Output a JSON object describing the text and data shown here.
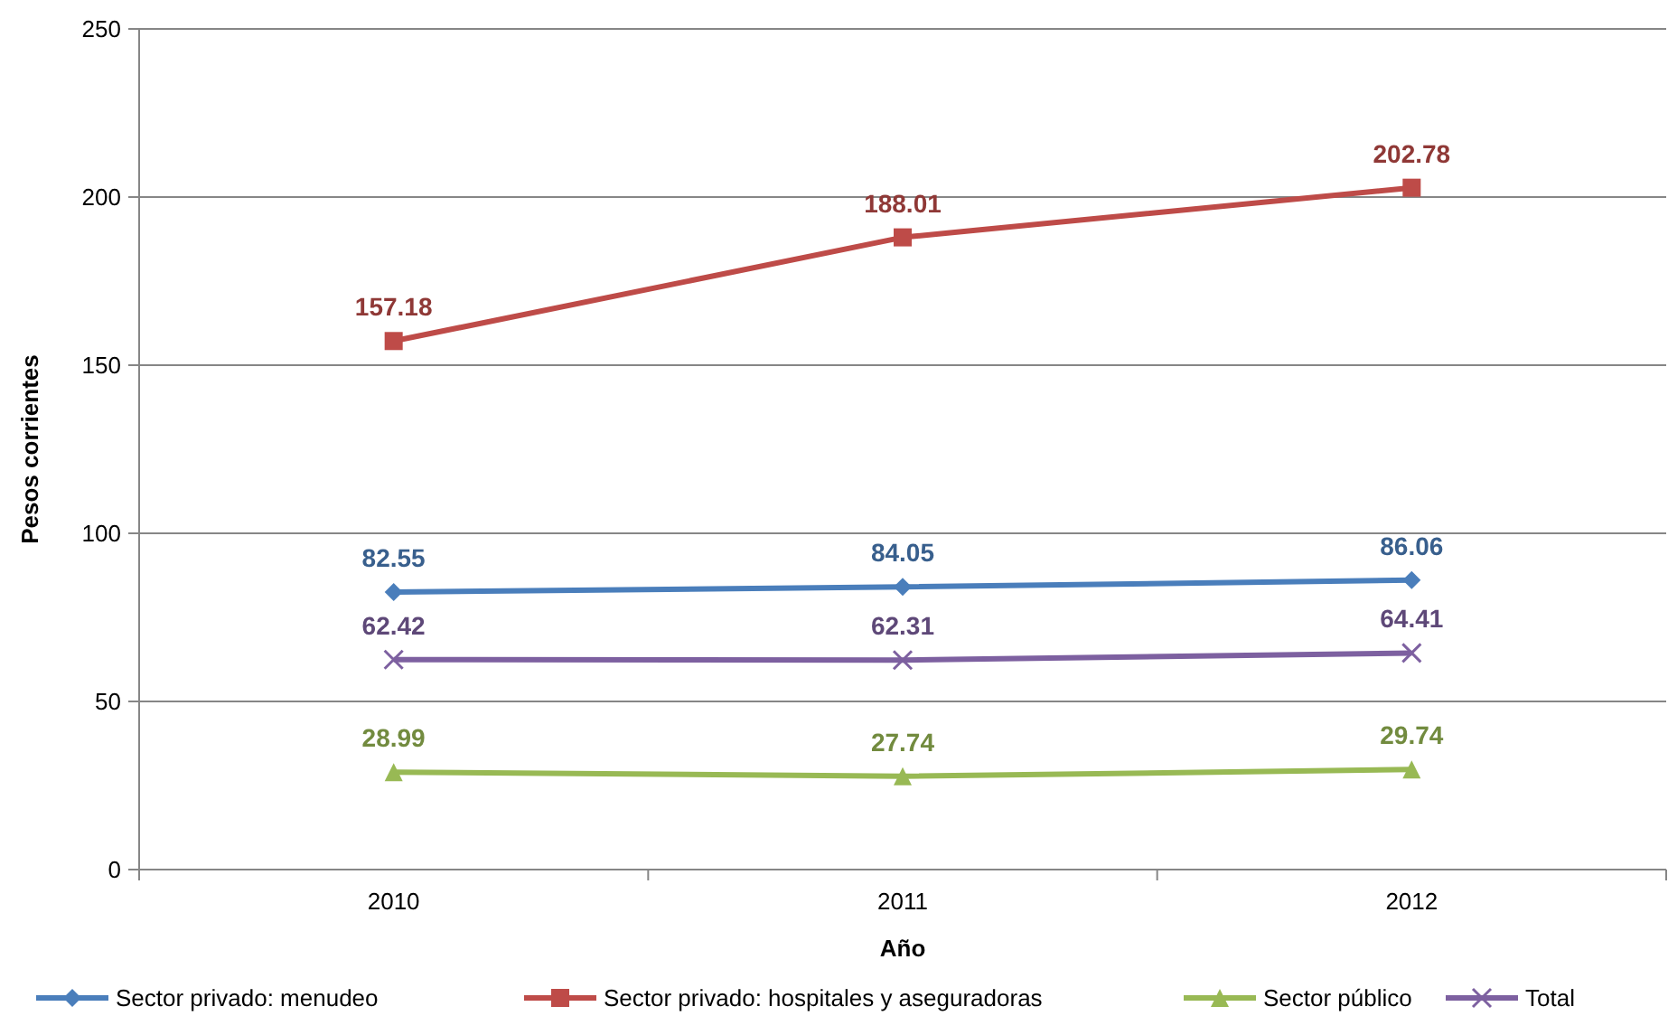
{
  "chart_data": {
    "type": "line",
    "xlabel": "Año",
    "ylabel": "Pesos corrientes",
    "categories": [
      "2010",
      "2011",
      "2012"
    ],
    "series": [
      {
        "name": "Sector privado: menudeo",
        "color": "#4a7ebb",
        "marker": "diamond",
        "values": [
          82.55,
          84.05,
          86.06
        ]
      },
      {
        "name": "Sector privado: hospitales y aseguradoras",
        "color": "#be4b48",
        "marker": "square",
        "values": [
          157.18,
          188.01,
          202.78
        ]
      },
      {
        "name": "Sector público",
        "color": "#98b954",
        "marker": "triangle",
        "values": [
          28.99,
          27.74,
          29.74
        ]
      },
      {
        "name": "Total",
        "color": "#7d60a0",
        "marker": "cross",
        "values": [
          62.42,
          62.31,
          64.41
        ]
      }
    ],
    "ylim": [
      0,
      250
    ],
    "yticks": [
      0,
      50,
      100,
      150,
      200,
      250
    ],
    "grid": "y",
    "legend": "bottom",
    "data_labels": true
  }
}
